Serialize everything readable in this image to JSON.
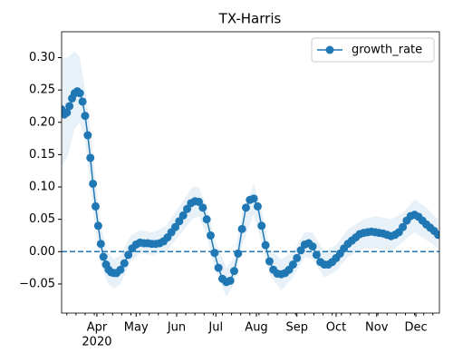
{
  "chart_data": {
    "type": "line",
    "title": "TX-Harris",
    "series": [
      {
        "name": "growth_rate",
        "color": "#1f77b4",
        "x": [
          65,
          67,
          69,
          71,
          73,
          75,
          77,
          79,
          81,
          83,
          85,
          87,
          89,
          91,
          93,
          95,
          97,
          99,
          101,
          103,
          105,
          107,
          110,
          113,
          116,
          119,
          122,
          125,
          128,
          131,
          134,
          137,
          140,
          143,
          146,
          149,
          152,
          155,
          158,
          161,
          164,
          167,
          170,
          173,
          176,
          179,
          182,
          185,
          188,
          191,
          194,
          197,
          200,
          203,
          206,
          209,
          212,
          215,
          218,
          221,
          224,
          227,
          230,
          233,
          236,
          239,
          242,
          245,
          248,
          251,
          254,
          257,
          260,
          263,
          266,
          269,
          272,
          275,
          278,
          281,
          284,
          287,
          290,
          293,
          296,
          299,
          302,
          305,
          308,
          311,
          314,
          317,
          320,
          323,
          326,
          329,
          332,
          335,
          338,
          341,
          344,
          347,
          350,
          353
        ],
        "values": [
          0.22,
          0.212,
          0.215,
          0.225,
          0.237,
          0.245,
          0.248,
          0.245,
          0.232,
          0.21,
          0.18,
          0.145,
          0.105,
          0.07,
          0.04,
          0.012,
          -0.008,
          -0.02,
          -0.028,
          -0.032,
          -0.033,
          -0.033,
          -0.028,
          -0.018,
          -0.005,
          0.005,
          0.011,
          0.014,
          0.013,
          0.013,
          0.012,
          0.012,
          0.013,
          0.016,
          0.022,
          0.03,
          0.038,
          0.047,
          0.056,
          0.066,
          0.075,
          0.078,
          0.077,
          0.068,
          0.05,
          0.025,
          -0.002,
          -0.025,
          -0.042,
          -0.047,
          -0.045,
          -0.03,
          -0.003,
          0.035,
          0.068,
          0.08,
          0.082,
          0.07,
          0.04,
          0.01,
          -0.015,
          -0.028,
          -0.034,
          -0.035,
          -0.033,
          -0.028,
          -0.02,
          -0.01,
          0.002,
          0.011,
          0.013,
          0.008,
          -0.005,
          -0.016,
          -0.02,
          -0.02,
          -0.016,
          -0.01,
          -0.003,
          0.005,
          0.012,
          0.017,
          0.022,
          0.027,
          0.029,
          0.03,
          0.031,
          0.03,
          0.029,
          0.028,
          0.026,
          0.024,
          0.026,
          0.03,
          0.038,
          0.048,
          0.055,
          0.057,
          0.054,
          0.048,
          0.042,
          0.037,
          0.032,
          0.026
        ]
      }
    ],
    "band": {
      "color": "#1f77b4",
      "x": [
        65,
        70,
        75,
        79,
        83,
        87,
        91,
        95,
        100,
        105,
        110,
        118,
        125,
        135,
        145,
        155,
        165,
        170,
        176,
        182,
        191,
        197,
        203,
        212,
        218,
        224,
        233,
        242,
        251,
        257,
        266,
        275,
        284,
        296,
        305,
        317,
        326,
        335,
        344,
        353
      ],
      "lower": [
        0.13,
        0.15,
        0.19,
        0.2,
        0.17,
        0.1,
        0.03,
        -0.02,
        -0.048,
        -0.057,
        -0.05,
        -0.015,
        -0.003,
        -0.005,
        0.0,
        0.025,
        0.05,
        0.055,
        0.025,
        -0.025,
        -0.07,
        -0.05,
        0.01,
        0.058,
        0.015,
        -0.035,
        -0.06,
        -0.04,
        -0.008,
        -0.012,
        -0.04,
        -0.03,
        -0.008,
        0.005,
        0.005,
        0.0,
        0.015,
        0.03,
        0.018,
        0.005
      ],
      "upper": [
        0.3,
        0.3,
        0.31,
        0.3,
        0.25,
        0.19,
        0.11,
        0.04,
        0.0,
        -0.012,
        -0.005,
        0.025,
        0.033,
        0.03,
        0.04,
        0.07,
        0.1,
        0.1,
        0.07,
        0.02,
        -0.025,
        -0.01,
        0.06,
        0.105,
        0.065,
        0.005,
        -0.012,
        0.0,
        0.03,
        0.03,
        0.0,
        0.01,
        0.035,
        0.05,
        0.055,
        0.05,
        0.06,
        0.08,
        0.068,
        0.05
      ]
    },
    "hline": 0,
    "xlim": [
      65,
      354
    ],
    "ylim": [
      -0.095,
      0.34
    ],
    "xticks": [
      {
        "value": 92,
        "label": "Apr"
      },
      {
        "value": 122,
        "label": "May"
      },
      {
        "value": 153,
        "label": "Jun"
      },
      {
        "value": 183,
        "label": "Jul"
      },
      {
        "value": 214,
        "label": "Aug"
      },
      {
        "value": 245,
        "label": "Sep"
      },
      {
        "value": 275,
        "label": "Oct"
      },
      {
        "value": 306,
        "label": "Nov"
      },
      {
        "value": 336,
        "label": "Dec"
      }
    ],
    "xtick_offset_label": "2020",
    "xminorticks": [
      69,
      76,
      83,
      90,
      97,
      104,
      111,
      118,
      125,
      132,
      139,
      146,
      153,
      160,
      167,
      174,
      181,
      188,
      195,
      202,
      209,
      216,
      223,
      230,
      237,
      244,
      251,
      258,
      265,
      272,
      279,
      286,
      293,
      300,
      307,
      314,
      321,
      328,
      335,
      342,
      349
    ],
    "yticks": [
      {
        "value": -0.05,
        "label": "−0.05"
      },
      {
        "value": 0,
        "label": "0.00"
      },
      {
        "value": 0.05,
        "label": "0.05"
      },
      {
        "value": 0.1,
        "label": "0.10"
      },
      {
        "value": 0.15,
        "label": "0.15"
      },
      {
        "value": 0.2,
        "label": "0.20"
      },
      {
        "value": 0.25,
        "label": "0.25"
      },
      {
        "value": 0.3,
        "label": "0.30"
      }
    ],
    "legend": "upper right"
  }
}
